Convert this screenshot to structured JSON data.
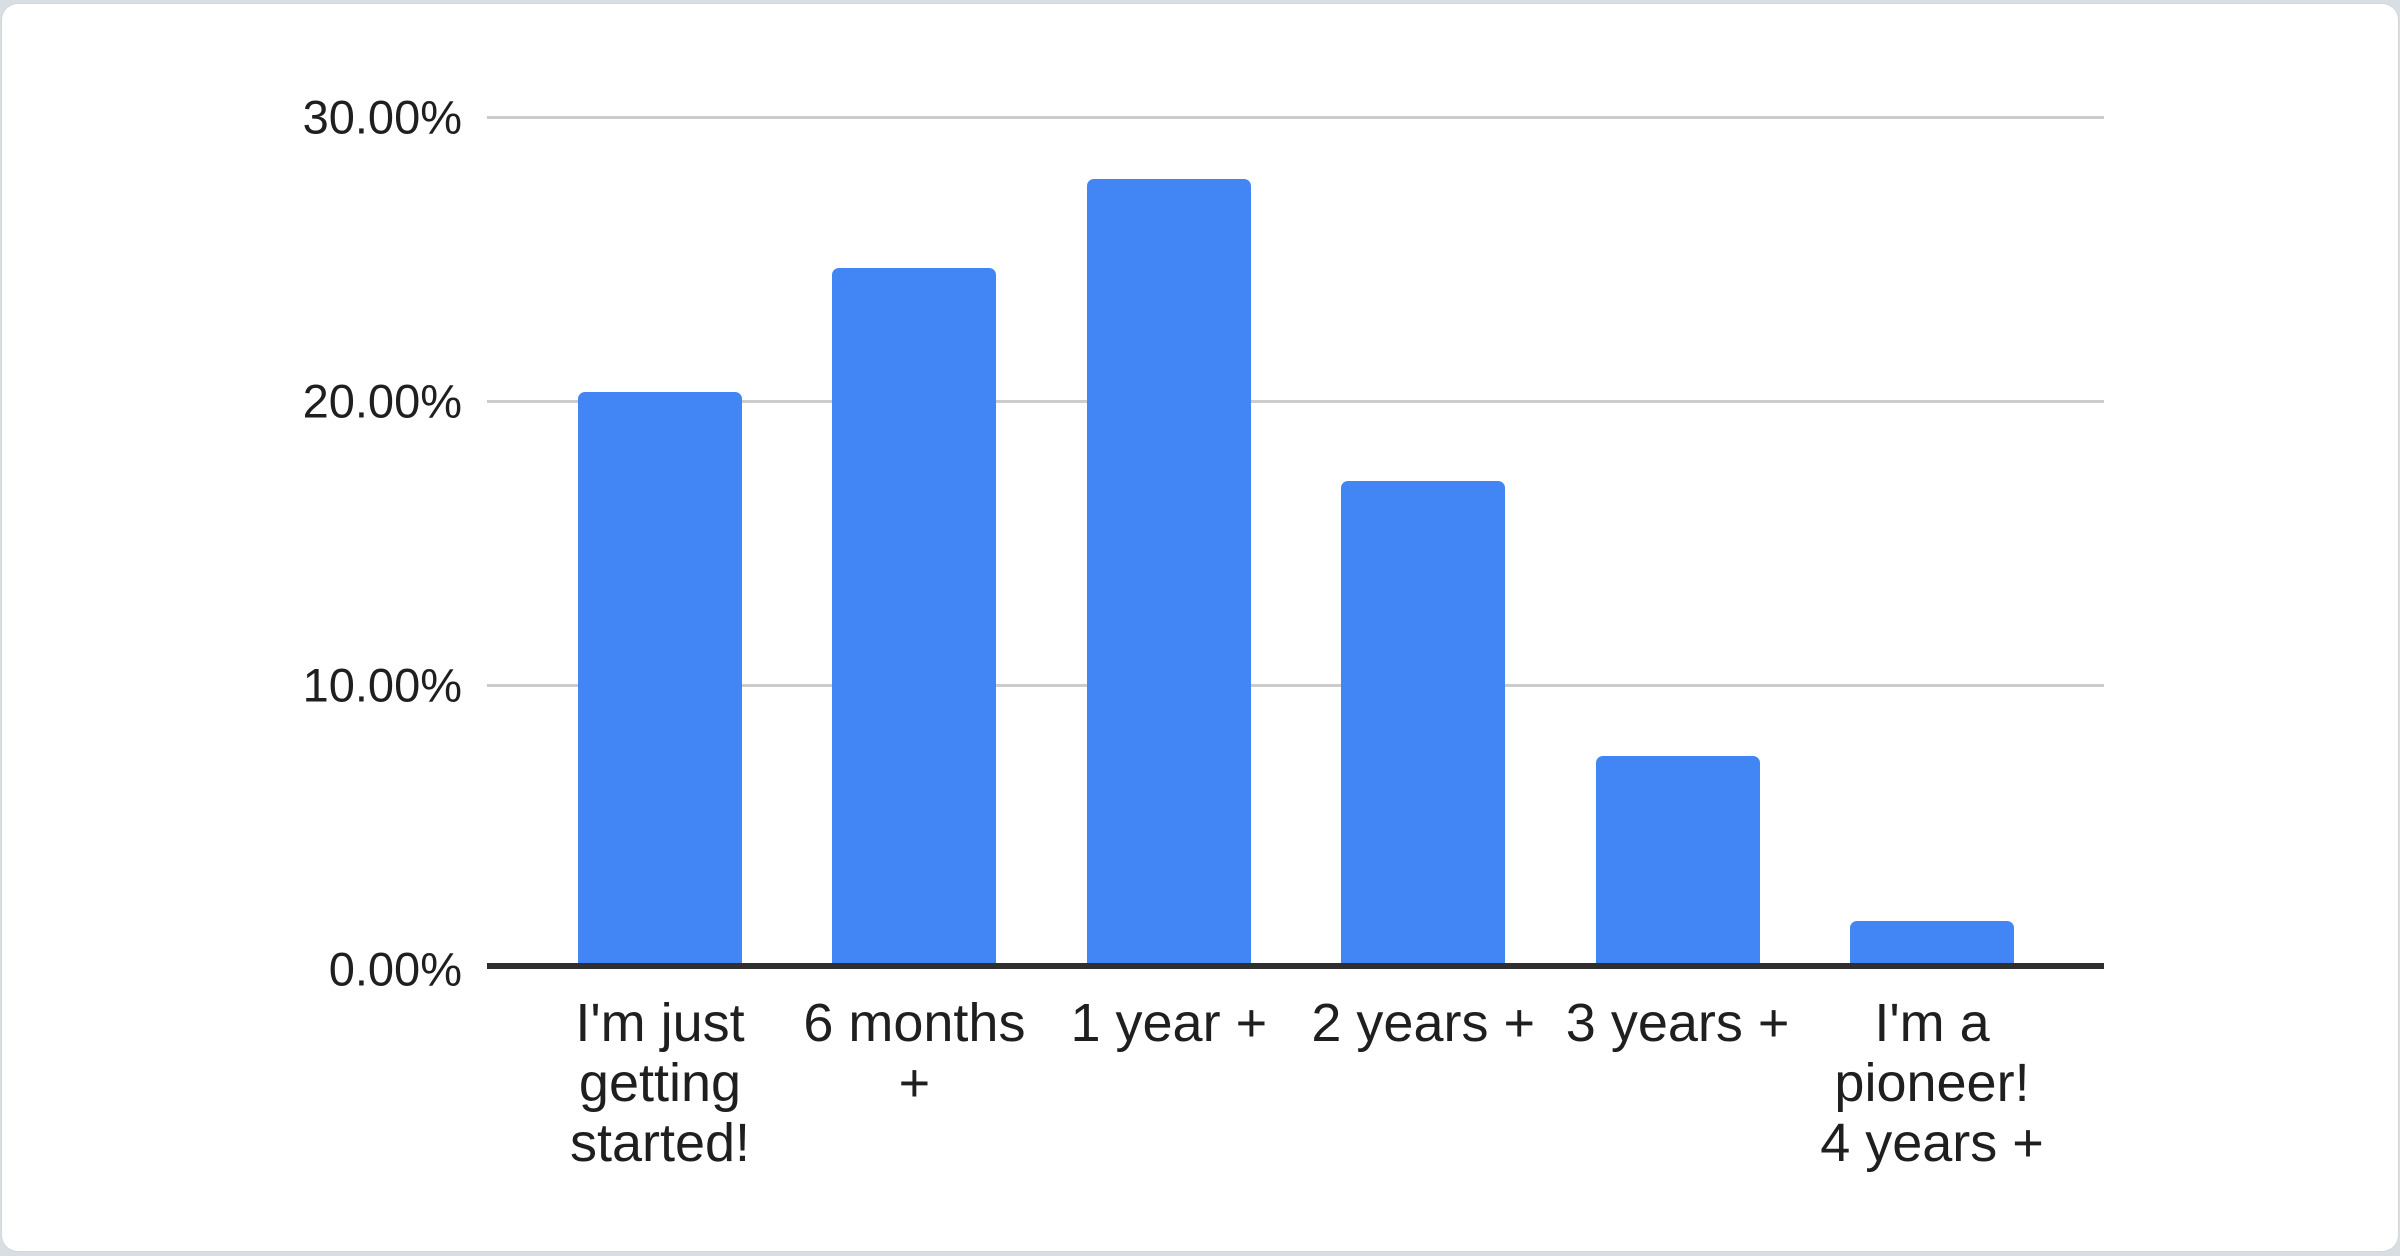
{
  "chart_data": {
    "type": "bar",
    "title": "",
    "xlabel": "",
    "ylabel": "",
    "categories": [
      "I'm just getting started!",
      "6 months +",
      "1 year +",
      "2 years +",
      "3 years +",
      "I'm a pioneer! 4 years +"
    ],
    "values": [
      20.3,
      24.7,
      27.8,
      17.2,
      7.5,
      1.7
    ],
    "value_format": "percent",
    "yticks": [
      {
        "label": "0.00%",
        "value": 0
      },
      {
        "label": "10.00%",
        "value": 10
      },
      {
        "label": "20.00%",
        "value": 20
      },
      {
        "label": "30.00%",
        "value": 30
      }
    ],
    "ylim": [
      0,
      30
    ],
    "grid": true,
    "legend": "none",
    "colors": {
      "bar": "#4285f4",
      "gridline": "#cccccc",
      "axis_line": "#2f2f2f",
      "tick_text": "#1f1f1f",
      "category_text": "#1f1f1f",
      "card_background": "#ffffff",
      "page_background": "#d9dee2"
    }
  }
}
